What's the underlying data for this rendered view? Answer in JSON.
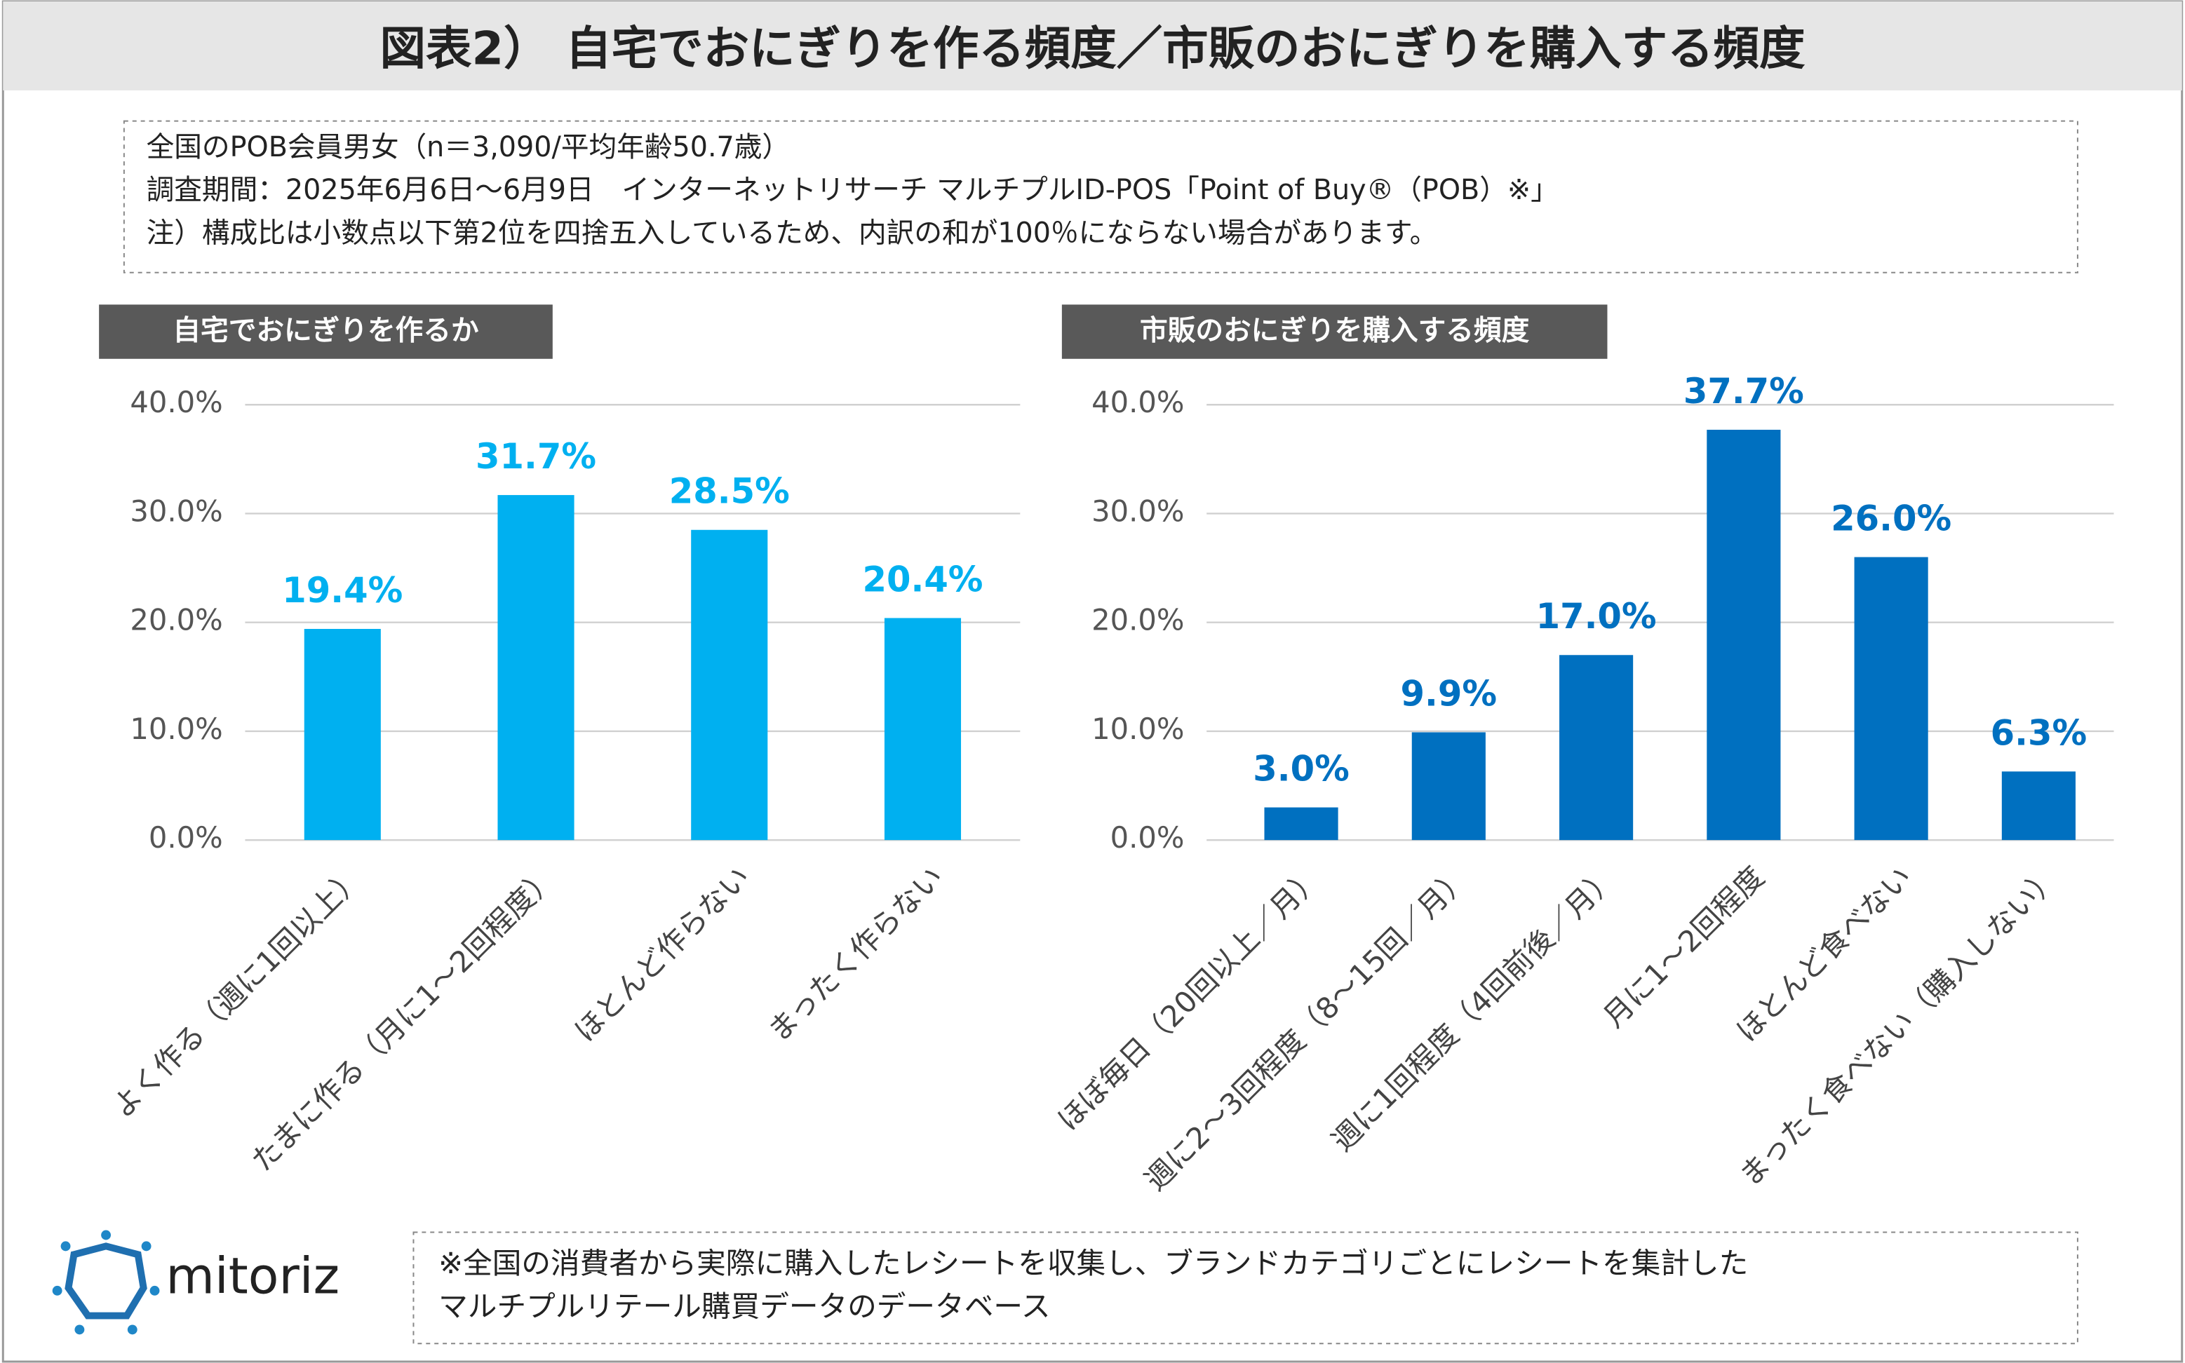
{
  "title": "図表2） 自宅でおにぎりを作る頻度／市販のおにぎりを購入する頻度",
  "notes": [
    "全国のPOB会員男女（n＝3,090/平均年齢50.7歳）",
    "調査期間：2025年6月6日～6月9日　インターネットリサーチ マルチプルID-POS「Point of Buy®（POB）※」",
    "注）構成比は小数点以下第2位を四捨五入しているため、内訳の和が100％にならない場合があります。"
  ],
  "footnote": [
    "※全国の消費者から実際に購入したレシートを収集し、ブランドカテゴリごとにレシートを集計した",
    "マルチプルリテール購買データのデータベース"
  ],
  "logo": "mitoriz",
  "chart_data": [
    {
      "type": "bar",
      "title": "自宅でおにぎりを作るか",
      "categories": [
        "よく作る（週に1回以上）",
        "たまに作る（月に1～2回程度）",
        "ほとんど作らない",
        "まったく作らない"
      ],
      "values": [
        19.4,
        31.7,
        28.5,
        20.4
      ],
      "value_labels": [
        "19.4%",
        "31.7%",
        "28.5%",
        "20.4%"
      ],
      "color": "#00b0f0",
      "ylim": [
        0,
        40
      ],
      "yticks": [
        {
          "value": 0,
          "label": "0.0%"
        },
        {
          "value": 10,
          "label": "10.0%"
        },
        {
          "value": 20,
          "label": "20.0%"
        },
        {
          "value": 30,
          "label": "30.0%"
        },
        {
          "value": 40,
          "label": "40.0%"
        }
      ],
      "grid": true
    },
    {
      "type": "bar",
      "title": "市販のおにぎりを購入する頻度",
      "categories": [
        "ほぼ毎日（20回以上／月）",
        "週に2～3回程度（8～15回／月）",
        "週に1回程度（4回前後／月）",
        "月に1～2回程度",
        "ほとんど食べない",
        "まったく食べない（購入しない）"
      ],
      "values": [
        3.0,
        9.9,
        17.0,
        37.7,
        26.0,
        6.3
      ],
      "value_labels": [
        "3.0%",
        "9.9%",
        "17.0%",
        "37.7%",
        "26.0%",
        "6.3%"
      ],
      "color": "#0070c0",
      "ylim": [
        0,
        40
      ],
      "yticks": [
        {
          "value": 0,
          "label": "0.0%"
        },
        {
          "value": 10,
          "label": "10.0%"
        },
        {
          "value": 20,
          "label": "20.0%"
        },
        {
          "value": 30,
          "label": "30.0%"
        },
        {
          "value": 40,
          "label": "40.0%"
        }
      ],
      "grid": true
    }
  ]
}
